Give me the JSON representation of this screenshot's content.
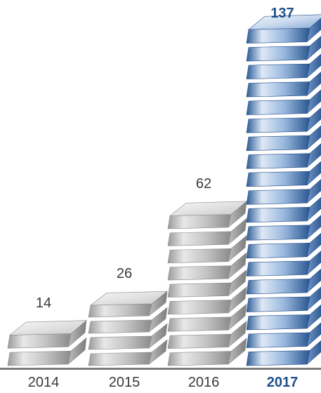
{
  "chart_data": {
    "type": "bar",
    "categories": [
      "2014",
      "2015",
      "2016",
      "2017"
    ],
    "values": [
      14,
      26,
      62,
      137
    ],
    "value_labels": [
      "14",
      "26",
      "62",
      "137"
    ],
    "highlight_index": 3,
    "title": "",
    "xlabel": "",
    "ylabel": "",
    "grid": false,
    "legend": "none",
    "colors": {
      "bar_light": "#f2f2f2",
      "bar_mid": "#c8c8c8",
      "bar_dark": "#8f8f8f",
      "highlight_light": "#e6eef8",
      "highlight_mid": "#8fb0d8",
      "highlight_dark": "#2f5e9a",
      "text": "#3a3a3a",
      "highlight_text": "#1d4f8c",
      "axis": "#7a7a7a"
    }
  }
}
